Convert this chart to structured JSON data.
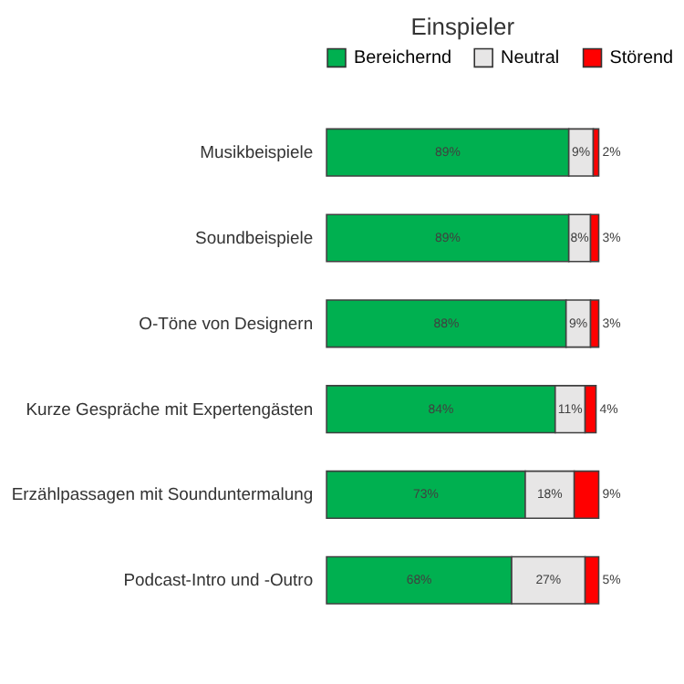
{
  "chart_data": {
    "type": "bar",
    "title": "Einspieler",
    "orientation": "horizontal",
    "stacked": true,
    "legend": "top",
    "categories": [
      "Musikbeispiele",
      "Soundbeispiele",
      "O-Töne von Designern",
      "Kurze Gespräche mit Expertengästen",
      "Erzählpassagen mit Sounduntermalung",
      "Podcast-Intro und -Outro"
    ],
    "series": [
      {
        "name": "Bereichernd",
        "color": "#00b050",
        "values": [
          89,
          89,
          88,
          84,
          73,
          68
        ],
        "value_labels": [
          "89%",
          "89%",
          "88%",
          "84%",
          "73%",
          "68%"
        ]
      },
      {
        "name": "Neutral",
        "color": "#e7e6e6",
        "values": [
          9,
          8,
          9,
          11,
          18,
          27
        ],
        "value_labels": [
          "9%",
          "8%",
          "9%",
          "11%",
          "18%",
          "27%"
        ]
      },
      {
        "name": "Störend",
        "color": "#ff0000",
        "values": [
          2,
          3,
          3,
          4,
          9,
          5
        ],
        "value_labels": [
          "2%",
          "3%",
          "3%",
          "4%",
          "9%",
          "5%"
        ]
      }
    ]
  }
}
